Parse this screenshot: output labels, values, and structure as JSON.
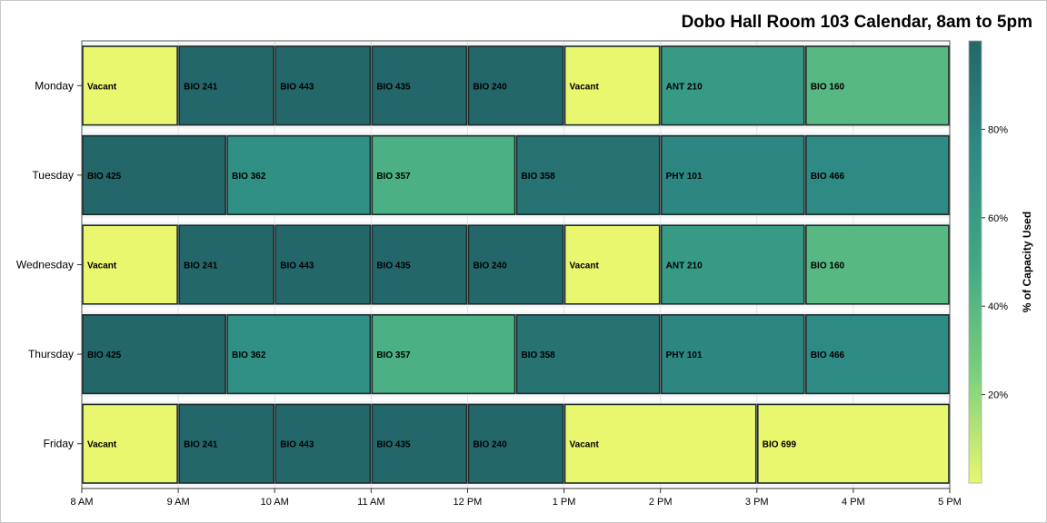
{
  "chart_data": {
    "type": "timeline",
    "title": "Dobo Hall Room 103 Calendar, 8am to 5pm",
    "xlabel": "",
    "ylabel": "",
    "x_ticks": [
      "8 AM",
      "9 AM",
      "10 AM",
      "11 AM",
      "12 PM",
      "1 PM",
      "2 PM",
      "3 PM",
      "4 PM",
      "5 PM"
    ],
    "xlim": [
      8,
      17
    ],
    "days": [
      "Monday",
      "Tuesday",
      "Wednesday",
      "Thursday",
      "Friday"
    ],
    "colorbar": {
      "title": "% of Capacity Used",
      "range": [
        0,
        100
      ],
      "ticks": [
        "20%",
        "40%",
        "60%",
        "80%"
      ],
      "tick_values": [
        20,
        40,
        60,
        80
      ],
      "colors": [
        "#e9f76e",
        "#7acf7e",
        "#3fa884",
        "#2e8a85",
        "#23676b"
      ]
    },
    "series": [
      {
        "day": "Monday",
        "events": [
          {
            "label": "Vacant",
            "start": 8,
            "end": 9,
            "pct": 0
          },
          {
            "label": "BIO 241",
            "start": 9,
            "end": 10,
            "pct": 100
          },
          {
            "label": "BIO 443",
            "start": 10,
            "end": 11,
            "pct": 100
          },
          {
            "label": "BIO 435",
            "start": 11,
            "end": 12,
            "pct": 100
          },
          {
            "label": "BIO 240",
            "start": 12,
            "end": 13,
            "pct": 100
          },
          {
            "label": "Vacant",
            "start": 13,
            "end": 14,
            "pct": 0
          },
          {
            "label": "ANT 210",
            "start": 14,
            "end": 15.5,
            "pct": 62
          },
          {
            "label": "BIO 160",
            "start": 15.5,
            "end": 17,
            "pct": 40
          }
        ]
      },
      {
        "day": "Tuesday",
        "events": [
          {
            "label": "BIO 425",
            "start": 8,
            "end": 9.5,
            "pct": 100
          },
          {
            "label": "BIO 362",
            "start": 9.5,
            "end": 11,
            "pct": 70
          },
          {
            "label": "BIO 357",
            "start": 11,
            "end": 12.5,
            "pct": 45
          },
          {
            "label": "BIO 358",
            "start": 12.5,
            "end": 14,
            "pct": 92
          },
          {
            "label": "PHY 101",
            "start": 14,
            "end": 15.5,
            "pct": 78
          },
          {
            "label": "BIO 466",
            "start": 15.5,
            "end": 17,
            "pct": 75
          }
        ]
      },
      {
        "day": "Wednesday",
        "events": [
          {
            "label": "Vacant",
            "start": 8,
            "end": 9,
            "pct": 0
          },
          {
            "label": "BIO 241",
            "start": 9,
            "end": 10,
            "pct": 100
          },
          {
            "label": "BIO 443",
            "start": 10,
            "end": 11,
            "pct": 100
          },
          {
            "label": "BIO 435",
            "start": 11,
            "end": 12,
            "pct": 100
          },
          {
            "label": "BIO 240",
            "start": 12,
            "end": 13,
            "pct": 100
          },
          {
            "label": "Vacant",
            "start": 13,
            "end": 14,
            "pct": 0
          },
          {
            "label": "ANT 210",
            "start": 14,
            "end": 15.5,
            "pct": 62
          },
          {
            "label": "BIO 160",
            "start": 15.5,
            "end": 17,
            "pct": 40
          }
        ]
      },
      {
        "day": "Thursday",
        "events": [
          {
            "label": "BIO 425",
            "start": 8,
            "end": 9.5,
            "pct": 100
          },
          {
            "label": "BIO 362",
            "start": 9.5,
            "end": 11,
            "pct": 70
          },
          {
            "label": "BIO 357",
            "start": 11,
            "end": 12.5,
            "pct": 45
          },
          {
            "label": "BIO 358",
            "start": 12.5,
            "end": 14,
            "pct": 92
          },
          {
            "label": "PHY 101",
            "start": 14,
            "end": 15.5,
            "pct": 78
          },
          {
            "label": "BIO 466",
            "start": 15.5,
            "end": 17,
            "pct": 75
          }
        ]
      },
      {
        "day": "Friday",
        "events": [
          {
            "label": "Vacant",
            "start": 8,
            "end": 9,
            "pct": 0
          },
          {
            "label": "BIO 241",
            "start": 9,
            "end": 10,
            "pct": 100
          },
          {
            "label": "BIO 443",
            "start": 10,
            "end": 11,
            "pct": 100
          },
          {
            "label": "BIO 435",
            "start": 11,
            "end": 12,
            "pct": 100
          },
          {
            "label": "BIO 240",
            "start": 12,
            "end": 13,
            "pct": 100
          },
          {
            "label": "Vacant",
            "start": 13,
            "end": 15,
            "pct": 0
          },
          {
            "label": "BIO 699",
            "start": 15,
            "end": 17,
            "pct": 0
          }
        ]
      }
    ]
  }
}
